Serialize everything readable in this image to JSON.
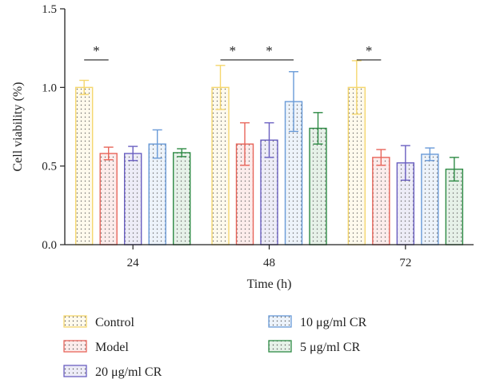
{
  "chart_data": {
    "type": "bar",
    "xlabel": "Time (h)",
    "ylabel": "Cell viability (%)",
    "ylim": [
      0,
      1.5
    ],
    "y_ticks": [
      "0.0",
      "0.5",
      "1.0",
      "1.5"
    ],
    "y_tick_values": [
      0,
      0.5,
      1.0,
      1.5
    ],
    "categories": [
      "24",
      "48",
      "72"
    ],
    "series": [
      {
        "name": "Control",
        "color": "#f5d76e",
        "values": [
          1.0,
          1.0,
          1.0
        ],
        "errors": [
          0.045,
          0.14,
          0.17
        ]
      },
      {
        "name": "Model",
        "color": "#e8655a",
        "values": [
          0.58,
          0.64,
          0.555
        ],
        "errors": [
          0.04,
          0.135,
          0.05
        ]
      },
      {
        "name": "20 μg/ml CR",
        "color": "#6a5fc1",
        "values": [
          0.58,
          0.665,
          0.52
        ],
        "errors": [
          0.045,
          0.11,
          0.11
        ]
      },
      {
        "name": "10 μg/ml CR",
        "color": "#6a9bd8",
        "values": [
          0.64,
          0.91,
          0.575
        ],
        "errors": [
          0.09,
          0.19,
          0.04
        ]
      },
      {
        "name": "5 μg/ml CR",
        "color": "#2e8b45",
        "values": [
          0.585,
          0.74,
          0.48
        ],
        "errors": [
          0.025,
          0.1,
          0.075
        ]
      }
    ],
    "significance": [
      {
        "label": "*",
        "group": "24",
        "from_series": 0,
        "to_series": 1
      },
      {
        "label": "*",
        "group": "48",
        "from_series": 0,
        "to_series": 1
      },
      {
        "label": "*",
        "group": "48",
        "from_series": 1,
        "to_series": 3
      },
      {
        "label": "*",
        "group": "72",
        "from_series": 0,
        "to_series": 1
      }
    ],
    "legend_rows": [
      [
        "Control",
        "10 μg/ml CR"
      ],
      [
        "Model",
        "5 μg/ml CR"
      ],
      [
        "20 μg/ml CR"
      ]
    ],
    "legend_position": "bottom",
    "grid": false
  }
}
